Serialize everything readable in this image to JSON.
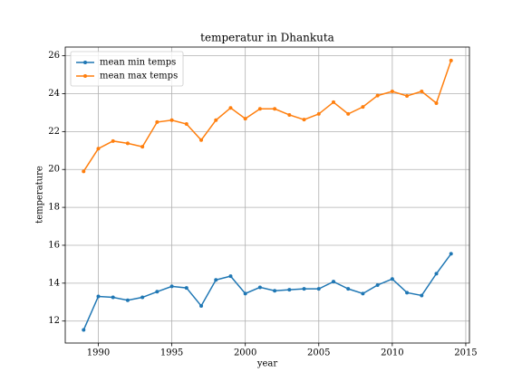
{
  "chart_data": {
    "type": "line",
    "title": "temperatur in Dhankuta",
    "x_label": "year",
    "y_label": "temperature",
    "x": [
      1989,
      1990,
      1991,
      1992,
      1993,
      1994,
      1995,
      1996,
      1997,
      1998,
      1999,
      2000,
      2001,
      2002,
      2003,
      2004,
      2005,
      2006,
      2007,
      2008,
      2009,
      2010,
      2011,
      2012,
      2013,
      2014
    ],
    "series": [
      {
        "name": "mean min temps",
        "color": "#1f77b4",
        "values": [
          11.53,
          13.3,
          13.25,
          13.1,
          13.25,
          13.55,
          13.83,
          13.75,
          12.8,
          14.17,
          14.37,
          13.45,
          13.78,
          13.6,
          13.65,
          13.7,
          13.7,
          14.08,
          13.7,
          13.45,
          13.9,
          14.22,
          13.5,
          13.35,
          14.5,
          15.55
        ]
      },
      {
        "name": "mean max temps",
        "color": "#ff7f0e",
        "values": [
          19.9,
          21.1,
          21.5,
          21.38,
          21.2,
          22.5,
          22.6,
          22.4,
          21.55,
          22.6,
          23.25,
          22.68,
          23.2,
          23.2,
          22.88,
          22.63,
          22.93,
          23.55,
          22.93,
          23.3,
          23.9,
          24.12,
          23.88,
          24.12,
          23.5,
          25.75
        ]
      }
    ],
    "xlim": [
      1987.75,
      2015.25
    ],
    "xticks": [
      1990,
      1995,
      2000,
      2005,
      2010,
      2015
    ],
    "ylim": [
      10.84,
      26.46
    ],
    "yticks": [
      12,
      14,
      16,
      18,
      20,
      22,
      24,
      26
    ],
    "grid": true,
    "legend": "upper left"
  }
}
